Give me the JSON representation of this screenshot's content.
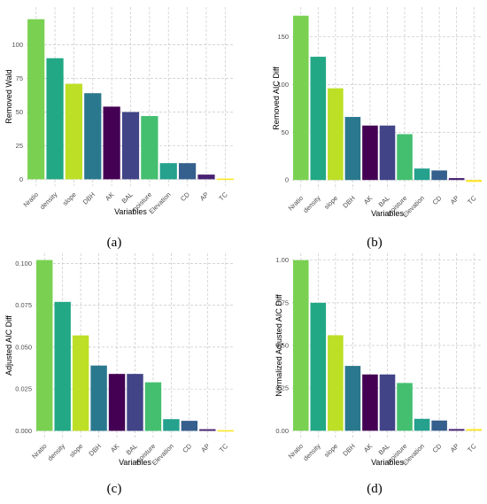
{
  "colors": {
    "Nratio": "#7ad151",
    "density": "#22a884",
    "slope": "#bddf26",
    "DBH": "#2a788e",
    "AK": "#440154",
    "BAL": "#414487",
    "moisture": "#44bf70",
    "Elevation": "#25a18e",
    "CD": "#355f8d",
    "AP": "#482173",
    "TC": "#fde725"
  },
  "chart_data": [
    {
      "type": "bar",
      "panel_label": "(a)",
      "xlabel": "Variables",
      "ylabel": "Removed Wald",
      "categories": [
        "Nratio",
        "density",
        "slope",
        "DBH",
        "AK",
        "BAL",
        "moisture",
        "Elevation",
        "CD",
        "AP",
        "TC"
      ],
      "values": [
        119,
        90,
        71,
        64,
        54,
        50,
        47,
        12,
        12,
        3.5,
        0
      ],
      "ylim": [
        -5,
        128
      ],
      "yticks": [
        0,
        25,
        50,
        75,
        100
      ],
      "ytick_labels": [
        "0",
        "25",
        "50",
        "75",
        "100"
      ],
      "grid": true
    },
    {
      "type": "bar",
      "panel_label": "(b)",
      "xlabel": "Variables",
      "ylabel": "Removed AIC Diff",
      "categories": [
        "Nratio",
        "density",
        "slope",
        "DBH",
        "AK",
        "BAL",
        "moisture",
        "Elevation",
        "CD",
        "AP",
        "TC"
      ],
      "values": [
        172,
        129,
        96,
        66,
        57,
        57,
        48,
        12,
        10,
        2,
        -2
      ],
      "ylim": [
        -10,
        181
      ],
      "yticks": [
        0,
        50,
        100,
        150
      ],
      "ytick_labels": [
        "0",
        "50",
        "100",
        "150"
      ],
      "grid": true
    },
    {
      "type": "bar",
      "panel_label": "(c)",
      "xlabel": "Variables",
      "ylabel": "Adjusted AIC Diff",
      "categories": [
        "Nratio",
        "density",
        "slope",
        "DBH",
        "AK",
        "BAL",
        "moisture",
        "Elevation",
        "CD",
        "AP",
        "TC"
      ],
      "values": [
        0.102,
        0.077,
        0.057,
        0.039,
        0.034,
        0.034,
        0.029,
        0.007,
        0.006,
        0.001,
        -0.0005
      ],
      "ylim": [
        -0.004,
        0.106
      ],
      "yticks": [
        0,
        0.025,
        0.05,
        0.075,
        0.1
      ],
      "ytick_labels": [
        "0.000",
        "0.025",
        "0.050",
        "0.075",
        "0.100"
      ],
      "grid": true
    },
    {
      "type": "bar",
      "panel_label": "(d)",
      "xlabel": "Variables",
      "ylabel": "Normalized Adjusted AIC Diff",
      "categories": [
        "Nratio",
        "density",
        "slope",
        "DBH",
        "AK",
        "BAL",
        "moisture",
        "Elevation",
        "CD",
        "AP",
        "TC"
      ],
      "values": [
        1.0,
        0.75,
        0.56,
        0.38,
        0.33,
        0.33,
        0.28,
        0.07,
        0.06,
        0.01,
        0.01
      ],
      "ylim": [
        -0.04,
        1.04
      ],
      "yticks": [
        0,
        0.25,
        0.5,
        0.75,
        1.0
      ],
      "ytick_labels": [
        "0.00",
        "0.25",
        "0.50",
        "0.75",
        "1.00"
      ],
      "grid": true
    }
  ]
}
